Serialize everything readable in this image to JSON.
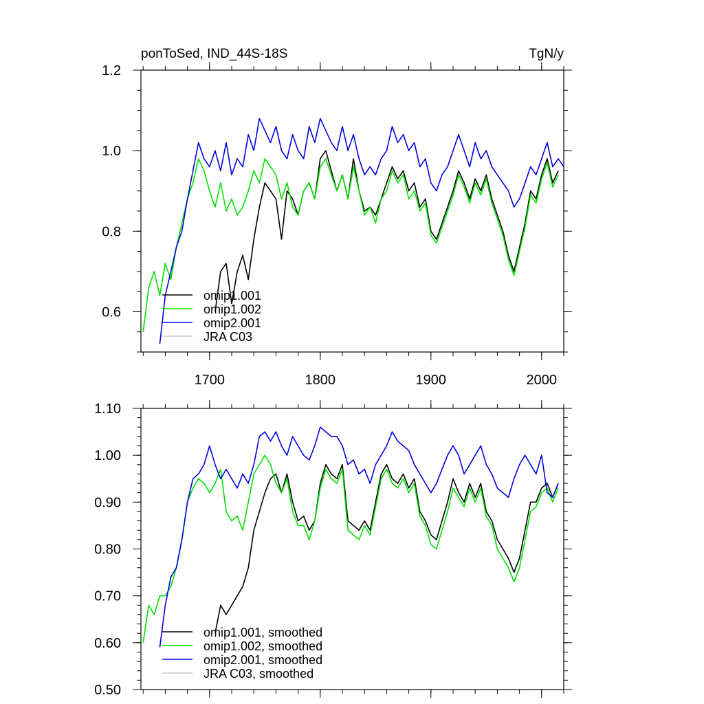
{
  "chart_data": [
    {
      "type": "line",
      "title_left": "ponToSed, IND_44S-18S",
      "title_right": "TgN/y",
      "xlim": [
        1638,
        2020
      ],
      "ylim": [
        0.5,
        1.2
      ],
      "x_ticks": [
        1700,
        1800,
        1900,
        2000
      ],
      "x_tick_labels": [
        "1700",
        "1800",
        "1900",
        "2000"
      ],
      "y_ticks": [
        0.6,
        0.8,
        1.0,
        1.2
      ],
      "y_tick_labels": [
        "0.6",
        "0.8",
        "1.0",
        "1.2"
      ],
      "legend_position": "bottom-left",
      "legend": [
        "omip1.001",
        "omip1.002",
        "omip2.001",
        "JRA C03"
      ],
      "series": [
        {
          "name": "omip1.001",
          "color": "#000000",
          "x": [
            1705,
            1710,
            1715,
            1720,
            1725,
            1730,
            1735,
            1740,
            1745,
            1750,
            1755,
            1760,
            1765,
            1770,
            1775,
            1780,
            1785,
            1790,
            1795,
            1800,
            1805,
            1810,
            1815,
            1820,
            1825,
            1830,
            1835,
            1840,
            1845,
            1850,
            1855,
            1860,
            1865,
            1870,
            1875,
            1880,
            1885,
            1890,
            1895,
            1900,
            1905,
            1910,
            1915,
            1920,
            1925,
            1930,
            1935,
            1940,
            1945,
            1950,
            1955,
            1960,
            1965,
            1970,
            1975,
            1980,
            1985,
            1990,
            1995,
            2000,
            2005,
            2010,
            2015
          ],
          "y": [
            0.6,
            0.7,
            0.72,
            0.62,
            0.7,
            0.74,
            0.68,
            0.78,
            0.86,
            0.92,
            0.9,
            0.88,
            0.78,
            0.9,
            0.88,
            0.84,
            0.9,
            0.92,
            0.88,
            0.98,
            1.0,
            0.95,
            0.9,
            0.94,
            0.88,
            0.98,
            0.9,
            0.85,
            0.86,
            0.84,
            0.88,
            0.92,
            0.96,
            0.93,
            0.95,
            0.9,
            0.92,
            0.86,
            0.88,
            0.8,
            0.78,
            0.82,
            0.86,
            0.9,
            0.95,
            0.92,
            0.88,
            0.93,
            0.9,
            0.94,
            0.88,
            0.84,
            0.8,
            0.74,
            0.7,
            0.76,
            0.82,
            0.9,
            0.88,
            0.94,
            0.98,
            0.92,
            0.95
          ]
        },
        {
          "name": "omip1.002",
          "color": "#00e000",
          "x": [
            1640,
            1645,
            1650,
            1655,
            1660,
            1665,
            1670,
            1675,
            1680,
            1685,
            1690,
            1695,
            1700,
            1705,
            1710,
            1715,
            1720,
            1725,
            1730,
            1735,
            1740,
            1745,
            1750,
            1755,
            1760,
            1765,
            1770,
            1775,
            1780,
            1785,
            1790,
            1795,
            1800,
            1805,
            1810,
            1815,
            1820,
            1825,
            1830,
            1835,
            1840,
            1845,
            1850,
            1855,
            1860,
            1865,
            1870,
            1875,
            1880,
            1885,
            1890,
            1895,
            1900,
            1905,
            1910,
            1915,
            1920,
            1925,
            1930,
            1935,
            1940,
            1945,
            1950,
            1955,
            1960,
            1965,
            1970,
            1975,
            1980,
            1985,
            1990,
            1995,
            2000,
            2005,
            2010,
            2015
          ],
          "y": [
            0.55,
            0.66,
            0.7,
            0.64,
            0.72,
            0.68,
            0.76,
            0.82,
            0.88,
            0.92,
            0.98,
            0.95,
            0.9,
            0.86,
            0.92,
            0.85,
            0.88,
            0.84,
            0.86,
            0.9,
            0.95,
            0.92,
            0.98,
            0.96,
            0.94,
            0.88,
            0.92,
            0.86,
            0.84,
            0.9,
            0.92,
            0.88,
            0.96,
            0.98,
            0.94,
            0.9,
            0.94,
            0.88,
            0.96,
            0.9,
            0.84,
            0.86,
            0.82,
            0.88,
            0.9,
            0.95,
            0.92,
            0.94,
            0.88,
            0.9,
            0.85,
            0.87,
            0.79,
            0.77,
            0.81,
            0.85,
            0.89,
            0.94,
            0.91,
            0.87,
            0.92,
            0.89,
            0.93,
            0.87,
            0.83,
            0.79,
            0.73,
            0.69,
            0.75,
            0.81,
            0.89,
            0.87,
            0.93,
            0.97,
            0.91,
            0.94
          ]
        },
        {
          "name": "omip2.001",
          "color": "#0000e0",
          "x": [
            1655,
            1660,
            1665,
            1670,
            1675,
            1680,
            1685,
            1690,
            1695,
            1700,
            1705,
            1710,
            1715,
            1720,
            1725,
            1730,
            1735,
            1740,
            1745,
            1750,
            1755,
            1760,
            1765,
            1770,
            1775,
            1780,
            1785,
            1790,
            1795,
            1800,
            1805,
            1810,
            1815,
            1820,
            1825,
            1830,
            1835,
            1840,
            1845,
            1850,
            1855,
            1860,
            1865,
            1870,
            1875,
            1880,
            1885,
            1890,
            1895,
            1900,
            1905,
            1910,
            1915,
            1920,
            1925,
            1930,
            1935,
            1940,
            1945,
            1950,
            1955,
            1960,
            1965,
            1970,
            1975,
            1980,
            1985,
            1990,
            1995,
            2000,
            2005,
            2010,
            2015,
            2020
          ],
          "y": [
            0.52,
            0.64,
            0.7,
            0.76,
            0.8,
            0.88,
            0.95,
            1.02,
            0.98,
            0.96,
            1.0,
            0.95,
            1.02,
            0.94,
            0.98,
            0.96,
            1.04,
            1.0,
            1.08,
            1.05,
            1.02,
            1.06,
            1.0,
            0.98,
            1.04,
            1.0,
            0.98,
            1.06,
            1.02,
            1.08,
            1.05,
            1.02,
            1.0,
            1.06,
            1.0,
            1.04,
            0.98,
            0.94,
            0.96,
            0.94,
            0.98,
            1.0,
            1.06,
            1.02,
            1.04,
            1.0,
            1.02,
            0.96,
            0.98,
            0.92,
            0.9,
            0.94,
            0.96,
            1.0,
            1.04,
            1.0,
            0.96,
            1.02,
            0.98,
            1.0,
            0.96,
            0.94,
            0.92,
            0.9,
            0.86,
            0.88,
            0.92,
            0.96,
            0.94,
            0.98,
            1.02,
            0.96,
            0.98,
            0.96
          ]
        },
        {
          "name": "JRA C03",
          "color": "#c8c8c8",
          "x": [],
          "y": []
        }
      ]
    },
    {
      "type": "line",
      "xlim": [
        1638,
        2020
      ],
      "ylim": [
        0.5,
        1.1
      ],
      "x_ticks": [
        1700,
        1800,
        1900,
        2000
      ],
      "y_ticks": [
        0.5,
        0.6,
        0.7,
        0.8,
        0.9,
        1.0,
        1.1
      ],
      "y_tick_labels": [
        "0.50",
        "0.60",
        "0.70",
        "0.80",
        "0.90",
        "1.00",
        "1.10"
      ],
      "legend_position": "bottom-left",
      "legend": [
        "omip1.001, smoothed",
        "omip1.002, smoothed",
        "omip2.001, smoothed",
        "JRA C03, smoothed"
      ],
      "series": [
        {
          "name": "omip1.001, smoothed",
          "color": "#000000",
          "x": [
            1705,
            1710,
            1715,
            1720,
            1725,
            1730,
            1735,
            1740,
            1745,
            1750,
            1755,
            1760,
            1765,
            1770,
            1775,
            1780,
            1785,
            1790,
            1795,
            1800,
            1805,
            1810,
            1815,
            1820,
            1825,
            1830,
            1835,
            1840,
            1845,
            1850,
            1855,
            1860,
            1865,
            1870,
            1875,
            1880,
            1885,
            1890,
            1895,
            1900,
            1905,
            1910,
            1915,
            1920,
            1925,
            1930,
            1935,
            1940,
            1945,
            1950,
            1955,
            1960,
            1965,
            1970,
            1975,
            1980,
            1985,
            1990,
            1995,
            2000,
            2005,
            2010,
            2015
          ],
          "y": [
            0.62,
            0.68,
            0.66,
            0.68,
            0.7,
            0.72,
            0.76,
            0.84,
            0.88,
            0.92,
            0.95,
            0.96,
            0.92,
            0.96,
            0.9,
            0.86,
            0.87,
            0.84,
            0.86,
            0.94,
            0.98,
            0.96,
            0.95,
            0.98,
            0.86,
            0.85,
            0.84,
            0.86,
            0.84,
            0.9,
            0.96,
            0.98,
            0.95,
            0.94,
            0.96,
            0.93,
            0.95,
            0.88,
            0.86,
            0.83,
            0.82,
            0.86,
            0.9,
            0.95,
            0.92,
            0.9,
            0.94,
            0.91,
            0.94,
            0.88,
            0.86,
            0.82,
            0.8,
            0.78,
            0.75,
            0.78,
            0.84,
            0.9,
            0.9,
            0.93,
            0.94,
            0.91,
            0.94
          ]
        },
        {
          "name": "omip1.002, smoothed",
          "color": "#00e000",
          "x": [
            1640,
            1645,
            1650,
            1655,
            1660,
            1665,
            1670,
            1675,
            1680,
            1685,
            1690,
            1695,
            1700,
            1705,
            1710,
            1715,
            1720,
            1725,
            1730,
            1735,
            1740,
            1745,
            1750,
            1755,
            1760,
            1765,
            1770,
            1775,
            1780,
            1785,
            1790,
            1795,
            1800,
            1805,
            1810,
            1815,
            1820,
            1825,
            1830,
            1835,
            1840,
            1845,
            1850,
            1855,
            1860,
            1865,
            1870,
            1875,
            1880,
            1885,
            1890,
            1895,
            1900,
            1905,
            1910,
            1915,
            1920,
            1925,
            1930,
            1935,
            1940,
            1945,
            1950,
            1955,
            1960,
            1965,
            1970,
            1975,
            1980,
            1985,
            1990,
            1995,
            2000,
            2005,
            2010,
            2015
          ],
          "y": [
            0.6,
            0.68,
            0.66,
            0.7,
            0.7,
            0.72,
            0.76,
            0.82,
            0.9,
            0.93,
            0.95,
            0.94,
            0.92,
            0.94,
            0.97,
            0.88,
            0.86,
            0.87,
            0.84,
            0.9,
            0.96,
            0.98,
            1.0,
            0.98,
            0.94,
            0.92,
            0.95,
            0.88,
            0.85,
            0.85,
            0.82,
            0.86,
            0.93,
            0.97,
            0.95,
            0.94,
            0.97,
            0.84,
            0.83,
            0.82,
            0.85,
            0.83,
            0.89,
            0.95,
            0.97,
            0.94,
            0.93,
            0.95,
            0.92,
            0.94,
            0.87,
            0.85,
            0.81,
            0.8,
            0.84,
            0.88,
            0.93,
            0.91,
            0.89,
            0.93,
            0.9,
            0.93,
            0.87,
            0.85,
            0.8,
            0.78,
            0.76,
            0.73,
            0.76,
            0.82,
            0.88,
            0.89,
            0.92,
            0.93,
            0.9,
            0.93
          ]
        },
        {
          "name": "omip2.001, smoothed",
          "color": "#0000e0",
          "x": [
            1655,
            1660,
            1665,
            1670,
            1675,
            1680,
            1685,
            1690,
            1695,
            1700,
            1705,
            1710,
            1715,
            1720,
            1725,
            1730,
            1735,
            1740,
            1745,
            1750,
            1755,
            1760,
            1765,
            1770,
            1775,
            1780,
            1785,
            1790,
            1795,
            1800,
            1805,
            1810,
            1815,
            1820,
            1825,
            1830,
            1835,
            1840,
            1845,
            1850,
            1855,
            1860,
            1865,
            1870,
            1875,
            1880,
            1885,
            1890,
            1895,
            1900,
            1905,
            1910,
            1915,
            1920,
            1925,
            1930,
            1935,
            1940,
            1945,
            1950,
            1955,
            1960,
            1965,
            1970,
            1975,
            1980,
            1985,
            1990,
            1995,
            2000,
            2005,
            2010,
            2015
          ],
          "y": [
            0.59,
            0.68,
            0.74,
            0.76,
            0.82,
            0.9,
            0.95,
            0.96,
            0.98,
            1.02,
            0.98,
            0.95,
            0.97,
            0.95,
            0.93,
            0.96,
            0.94,
            0.98,
            1.04,
            1.05,
            1.03,
            1.05,
            1.02,
            1.0,
            1.04,
            1.02,
            1.0,
            0.99,
            1.02,
            1.06,
            1.05,
            1.04,
            1.04,
            1.02,
            0.98,
            0.99,
            0.96,
            0.97,
            0.94,
            0.98,
            1.0,
            1.02,
            1.05,
            1.03,
            1.02,
            1.01,
            0.98,
            0.96,
            0.94,
            0.92,
            0.94,
            0.97,
            1.0,
            1.02,
            1.0,
            0.96,
            0.98,
            1.0,
            1.02,
            0.98,
            0.96,
            0.93,
            0.92,
            0.91,
            0.95,
            0.98,
            1.0,
            0.98,
            0.96,
            1.0,
            0.92,
            0.91,
            0.94
          ]
        },
        {
          "name": "JRA C03, smoothed",
          "color": "#c8c8c8",
          "x": [],
          "y": []
        }
      ]
    }
  ]
}
